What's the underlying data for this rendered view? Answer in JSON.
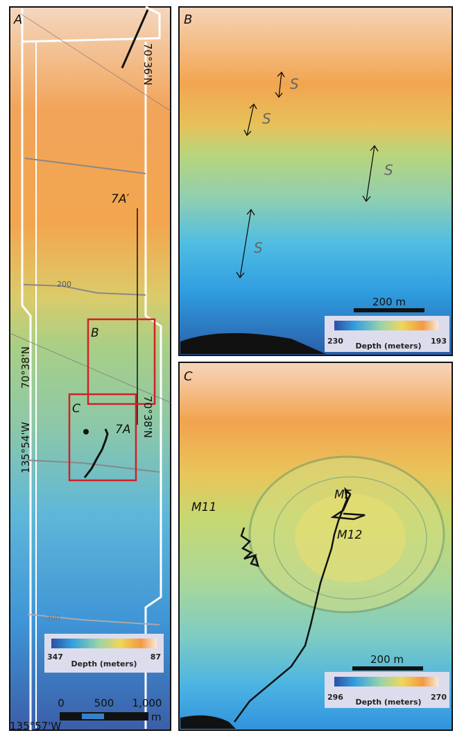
{
  "panels": [
    {
      "label": "A",
      "annotations": [
        "70°36'N",
        "7A′",
        "200",
        "B",
        "70°38'N",
        "135°54'W",
        "7A",
        "70°38'N",
        "C",
        "300",
        "135°57'W"
      ],
      "colorbar": {
        "min_label": "347",
        "title": "Depth (meters)",
        "max_label": "87"
      },
      "scale_bar": {
        "labels": [
          "0",
          "500",
          "1,000"
        ],
        "unit": "m"
      }
    },
    {
      "label": "B",
      "annotations": [
        "S",
        "S",
        "S",
        "S"
      ],
      "scale_bar": {
        "labels": [
          "200 m"
        ]
      },
      "colorbar": {
        "min_label": "230",
        "title": "Depth (meters)",
        "max_label": "193"
      }
    },
    {
      "label": "C",
      "annotations": [
        "M11",
        "M5",
        "M12"
      ],
      "scale_bar": {
        "labels": [
          "200 m"
        ]
      },
      "colorbar": {
        "min_label": "296",
        "title": "Depth (meters)",
        "max_label": "270"
      }
    }
  ]
}
